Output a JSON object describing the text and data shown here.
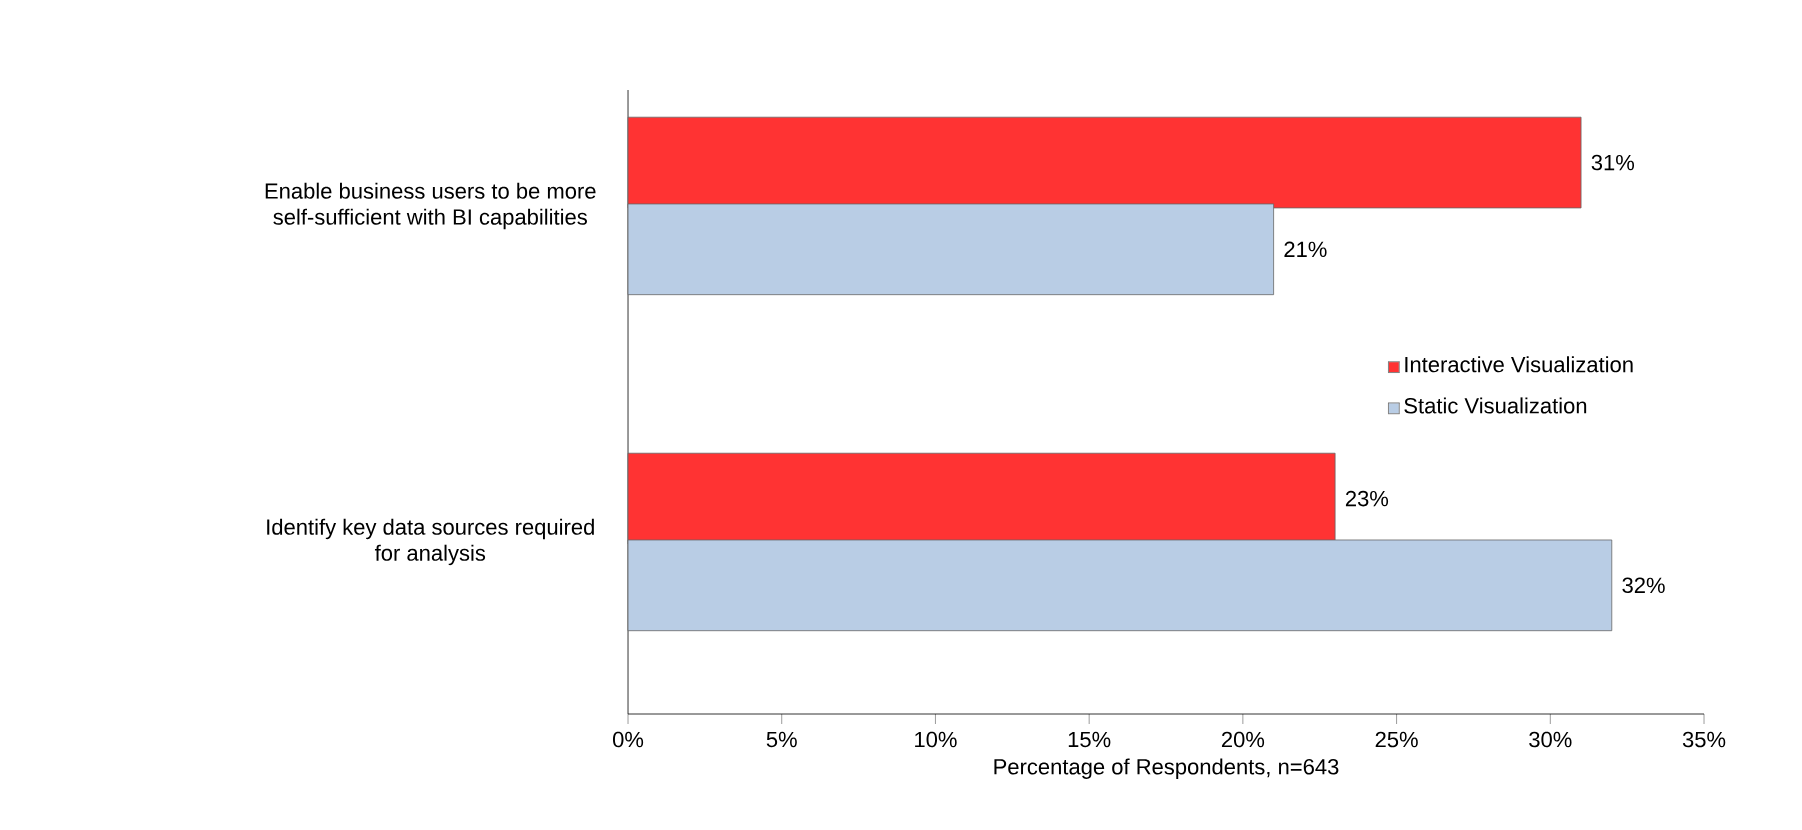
{
  "chart_data": {
    "type": "bar",
    "orientation": "horizontal",
    "xlabel": "Percentage of Respondents, n=643",
    "categories": [
      "Enable business users to be more self-sufficient with BI capabilities",
      "Identify key data sources required for analysis"
    ],
    "series": [
      {
        "name": "Interactive Visualization",
        "color": "#ff3333",
        "values": [
          31,
          23
        ],
        "value_labels": [
          "31%",
          "23%"
        ]
      },
      {
        "name": "Static Visualization",
        "color": "#b9cde5",
        "values": [
          21,
          32
        ],
        "value_labels": [
          "21%",
          "32%"
        ]
      }
    ],
    "xlim": [
      0,
      35
    ],
    "xticks": [
      {
        "value": 0,
        "label": "0%"
      },
      {
        "value": 5,
        "label": "5%"
      },
      {
        "value": 10,
        "label": "10%"
      },
      {
        "value": 15,
        "label": "15%"
      },
      {
        "value": 20,
        "label": "20%"
      },
      {
        "value": 25,
        "label": "25%"
      },
      {
        "value": 30,
        "label": "30%"
      },
      {
        "value": 35,
        "label": "35%"
      }
    ],
    "legend": "right",
    "grid": false
  }
}
